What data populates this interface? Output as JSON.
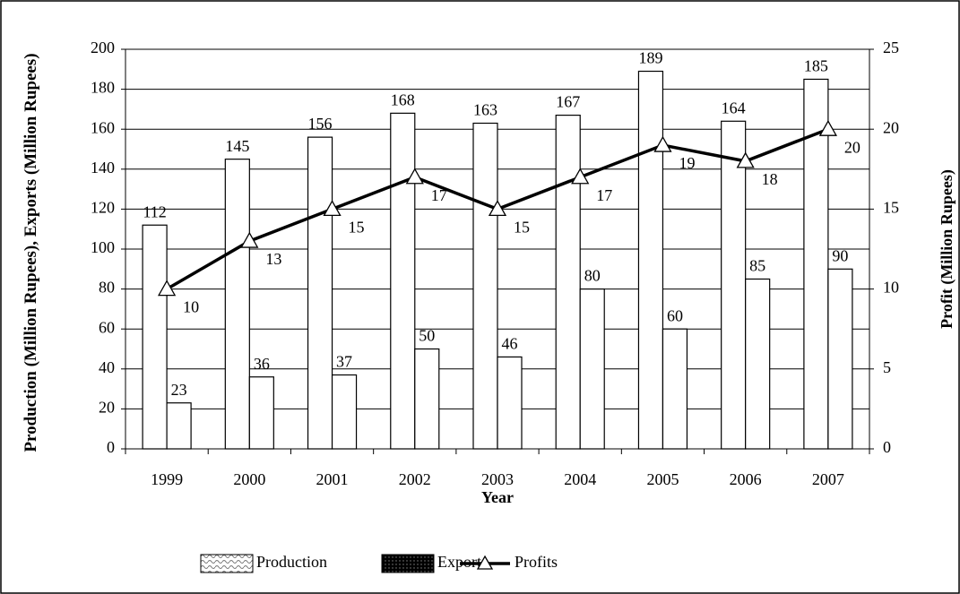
{
  "chart_data": {
    "type": "bar",
    "x_label": "Year",
    "y_label": "Production (Million Rupees), Exports (Million Rupees)",
    "y2_label": "Profit (Million Rupees)",
    "categories": [
      "1999",
      "2000",
      "2001",
      "2002",
      "2003",
      "2004",
      "2005",
      "2006",
      "2007"
    ],
    "series": [
      {
        "name": "Production",
        "type": "bar",
        "color": "#ffffff",
        "values": [
          112,
          145,
          156,
          168,
          163,
          167,
          189,
          164,
          185
        ]
      },
      {
        "name": "Exports",
        "type": "bar",
        "color": "#ffffff",
        "values": [
          23,
          36,
          37,
          50,
          46,
          80,
          60,
          85,
          90
        ]
      },
      {
        "name": "Profits",
        "type": "line",
        "axis": "y2",
        "color": "#000000",
        "values": [
          10,
          13,
          15,
          17,
          15,
          17,
          19,
          18,
          20
        ]
      }
    ],
    "ylim": [
      0,
      200
    ],
    "yticks": [
      0,
      20,
      40,
      60,
      80,
      100,
      120,
      140,
      160,
      180,
      200
    ],
    "y2lim": [
      0,
      25
    ],
    "y2ticks": [
      0,
      5,
      10,
      15,
      20,
      25
    ],
    "grid": true,
    "legend": "bottom"
  }
}
